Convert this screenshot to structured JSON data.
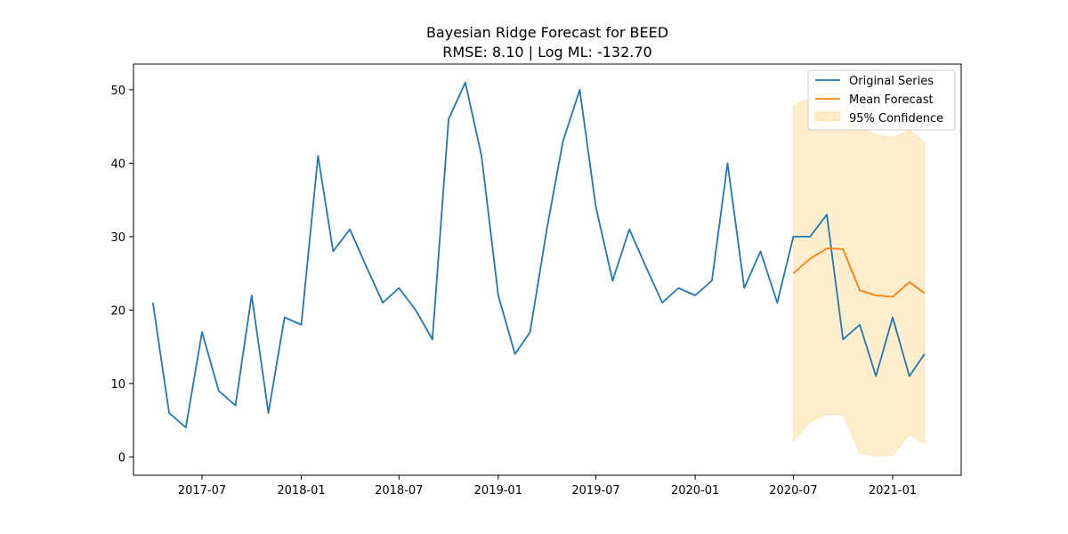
{
  "chart_data": {
    "type": "line",
    "title": "Bayesian Ridge Forecast for BEED",
    "subtitle": "RMSE: 8.10 | Log ML: -132.70",
    "xlabel": "",
    "ylabel": "",
    "x_type": "date",
    "xlim": [
      "2017-02-24",
      "2021-05-08"
    ],
    "ylim": [
      -2.5,
      53.5
    ],
    "x_ticks": [
      "2017-07-01",
      "2018-01-01",
      "2018-07-01",
      "2019-01-01",
      "2019-07-01",
      "2020-01-01",
      "2020-07-01",
      "2021-01-01"
    ],
    "x_tick_labels": [
      "2017-07",
      "2018-01",
      "2018-07",
      "2019-01",
      "2019-07",
      "2020-01",
      "2020-07",
      "2021-01"
    ],
    "y_ticks": [
      0,
      10,
      20,
      30,
      40,
      50
    ],
    "y_tick_labels": [
      "0",
      "10",
      "20",
      "30",
      "40",
      "50"
    ],
    "grid": false,
    "legend_position": "top-right",
    "colors": {
      "original": "#1f77b4",
      "forecast": "#ff7f0e",
      "confidence": "#ffa500"
    },
    "series": [
      {
        "name": "Original Series",
        "x": [
          "2017-04-01",
          "2017-05-01",
          "2017-06-01",
          "2017-07-01",
          "2017-08-01",
          "2017-09-01",
          "2017-10-01",
          "2017-11-01",
          "2017-12-01",
          "2018-01-01",
          "2018-02-01",
          "2018-03-01",
          "2018-04-01",
          "2018-05-01",
          "2018-06-01",
          "2018-07-01",
          "2018-08-01",
          "2018-09-01",
          "2018-10-01",
          "2018-11-01",
          "2018-12-01",
          "2019-01-01",
          "2019-02-01",
          "2019-03-01",
          "2019-04-01",
          "2019-05-01",
          "2019-06-01",
          "2019-07-01",
          "2019-08-01",
          "2019-09-01",
          "2019-10-01",
          "2019-11-01",
          "2019-12-01",
          "2020-01-01",
          "2020-02-01",
          "2020-03-01",
          "2020-04-01",
          "2020-05-01",
          "2020-06-01",
          "2020-07-01",
          "2020-08-01",
          "2020-09-01",
          "2020-10-01",
          "2020-11-01",
          "2020-12-01",
          "2021-01-01",
          "2021-02-01",
          "2021-03-01"
        ],
        "values": [
          21,
          6,
          4,
          17,
          9,
          7,
          22,
          6,
          19,
          18,
          41,
          28,
          31,
          26,
          21,
          23,
          20,
          16,
          46,
          51,
          41,
          22,
          14,
          17,
          31,
          43,
          50,
          34,
          24,
          31,
          26,
          21,
          23,
          22,
          24,
          40,
          23,
          28,
          21,
          30,
          30,
          33,
          16,
          18,
          11,
          19,
          11,
          14
        ]
      },
      {
        "name": "Mean Forecast",
        "x": [
          "2020-07-01",
          "2020-08-01",
          "2020-09-01",
          "2020-10-01",
          "2020-11-01",
          "2020-12-01",
          "2021-01-01",
          "2021-02-01",
          "2021-03-01"
        ],
        "values": [
          25.0,
          27.0,
          28.4,
          28.3,
          22.7,
          22.0,
          21.8,
          23.8,
          22.3
        ]
      },
      {
        "name": "95% Confidence",
        "type": "area",
        "x": [
          "2020-07-01",
          "2020-08-01",
          "2020-09-01",
          "2020-10-01",
          "2020-11-01",
          "2020-12-01",
          "2021-01-01",
          "2021-02-01",
          "2021-03-01"
        ],
        "lower": [
          2.1,
          4.8,
          5.8,
          5.7,
          0.5,
          0.1,
          0.2,
          3.0,
          1.8
        ],
        "upper": [
          47.8,
          48.9,
          49.5,
          49.5,
          44.8,
          43.9,
          43.5,
          44.5,
          42.9
        ]
      }
    ]
  }
}
